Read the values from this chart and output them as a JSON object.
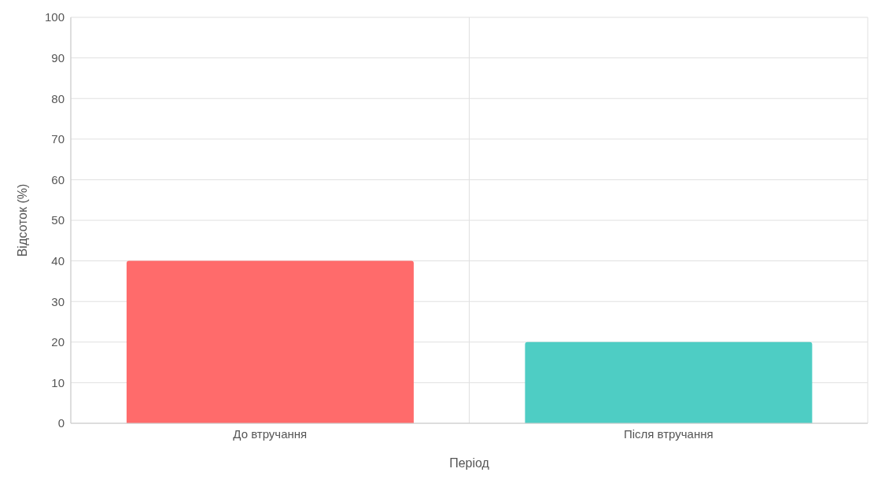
{
  "chart_data": {
    "type": "bar",
    "categories": [
      "До втручання",
      "Після втручання"
    ],
    "values": [
      40,
      20
    ],
    "colors": [
      "#ff6b6b",
      "#4ecdc4"
    ],
    "xlabel": "Період",
    "ylabel": "Відсоток (%)",
    "ylim": [
      0,
      100
    ],
    "yticks": [
      0,
      10,
      20,
      30,
      40,
      50,
      60,
      70,
      80,
      90,
      100
    ],
    "grid": true
  }
}
